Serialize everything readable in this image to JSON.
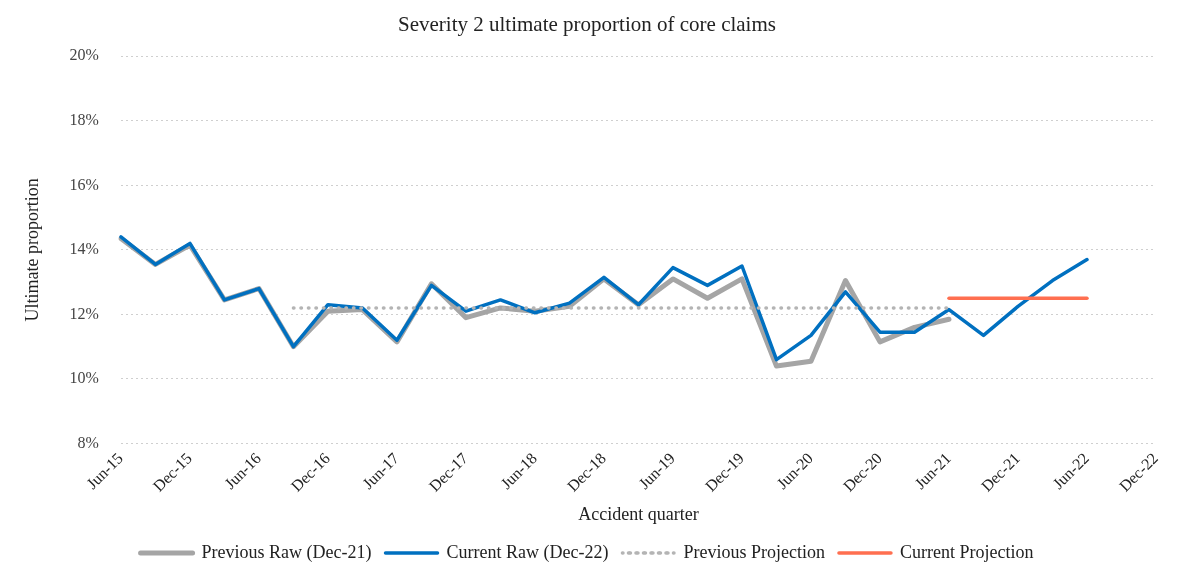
{
  "chart_data": {
    "type": "line",
    "title": "Severity 2 ultimate proportion of core claims",
    "xlabel": "Accident quarter",
    "ylabel": "Ultimate proportion",
    "categories": [
      "Jun-15",
      null,
      "Dec-15",
      null,
      "Jun-16",
      null,
      "Dec-16",
      null,
      "Jun-17",
      null,
      "Dec-17",
      null,
      "Jun-18",
      null,
      "Dec-18",
      null,
      "Jun-19",
      null,
      "Dec-19",
      null,
      "Jun-20",
      null,
      "Dec-20",
      null,
      "Jun-21",
      null,
      "Dec-21",
      null,
      "Jun-22",
      null,
      "Dec-22"
    ],
    "series": [
      {
        "name": "Previous Raw (Dec-21)",
        "color": "#a5a5a5",
        "line_style": "solid",
        "values": [
          14.35,
          13.55,
          14.15,
          12.45,
          12.8,
          11.0,
          12.1,
          12.15,
          11.15,
          12.95,
          11.9,
          12.2,
          12.1,
          12.25,
          13.1,
          12.3,
          13.1,
          12.5,
          13.1,
          10.4,
          10.55,
          13.05,
          11.15,
          11.6,
          11.85,
          null,
          null,
          null,
          null,
          null,
          null
        ]
      },
      {
        "name": "Current Raw (Dec-22)",
        "color": "#0070c0",
        "line_style": "solid",
        "values": [
          14.4,
          13.55,
          14.2,
          12.45,
          12.8,
          11.0,
          12.3,
          12.2,
          11.2,
          12.9,
          12.1,
          12.45,
          12.05,
          12.35,
          13.15,
          12.3,
          13.45,
          12.9,
          13.5,
          10.6,
          11.35,
          12.7,
          11.45,
          11.45,
          12.15,
          11.35,
          12.25,
          13.05,
          13.7,
          null,
          null
        ]
      },
      {
        "name": "Previous Projection",
        "color": "#b4b4b4",
        "line_style": "dotted",
        "values": [
          null,
          null,
          null,
          null,
          null,
          12.2,
          12.2,
          12.2,
          12.2,
          12.2,
          12.2,
          12.2,
          12.2,
          12.2,
          12.2,
          12.2,
          12.2,
          12.2,
          12.2,
          12.2,
          12.2,
          12.2,
          12.2,
          12.2,
          12.2,
          null,
          null,
          null,
          null,
          null,
          null
        ]
      },
      {
        "name": "Current Projection",
        "color": "#ff6f50",
        "line_style": "solid",
        "values": [
          null,
          null,
          null,
          null,
          null,
          null,
          null,
          null,
          null,
          null,
          null,
          null,
          null,
          null,
          null,
          null,
          null,
          null,
          null,
          null,
          null,
          null,
          null,
          null,
          12.5,
          12.5,
          12.5,
          12.5,
          12.5,
          null,
          null
        ]
      }
    ],
    "ylim": [
      8,
      20
    ],
    "yticks": [
      {
        "value": 8,
        "label": "8%"
      },
      {
        "value": 10,
        "label": "10%"
      },
      {
        "value": 12,
        "label": "12%"
      },
      {
        "value": 14,
        "label": "14%"
      },
      {
        "value": 16,
        "label": "16%"
      },
      {
        "value": 18,
        "label": "18%"
      },
      {
        "value": 20,
        "label": "20%"
      }
    ],
    "grid": "y",
    "legend": "bottom",
    "marker": "none"
  }
}
